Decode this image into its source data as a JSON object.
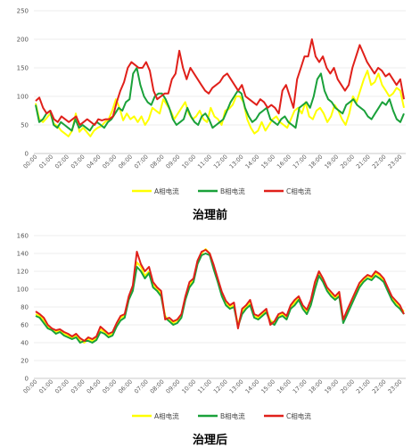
{
  "charts": [
    {
      "caption": "治理前"
    },
    {
      "caption": "治理后"
    }
  ],
  "chart_data": [
    {
      "type": "line",
      "title": "治理前",
      "ylim": [
        0,
        250
      ],
      "yticks": [
        0,
        50,
        100,
        150,
        200,
        250
      ],
      "xticklabels": [
        "00:00",
        "01:00",
        "02:00",
        "03:00",
        "04:00",
        "05:00",
        "06:00",
        "07:00",
        "08:00",
        "09:00",
        "10:00",
        "11:00",
        "12:00",
        "13:00",
        "14:00",
        "15:00",
        "16:00",
        "17:00",
        "18:00",
        "19:00",
        "20:00",
        "21:00",
        "22:00",
        "23:00"
      ],
      "grid": true,
      "legend": "bottom",
      "series": [
        {
          "name": "A相电流",
          "color": "#ffff00",
          "values": [
            88,
            60,
            55,
            62,
            70,
            52,
            48,
            40,
            35,
            30,
            40,
            70,
            38,
            45,
            38,
            30,
            40,
            45,
            48,
            55,
            60,
            75,
            95,
            80,
            58,
            70,
            60,
            65,
            55,
            65,
            50,
            60,
            80,
            75,
            70,
            95,
            85,
            75,
            60,
            70,
            80,
            90,
            70,
            60,
            65,
            75,
            60,
            55,
            80,
            65,
            60,
            50,
            75,
            78,
            85,
            100,
            100,
            90,
            60,
            45,
            35,
            40,
            55,
            40,
            50,
            60,
            65,
            55,
            50,
            45,
            60,
            75,
            80,
            70,
            90,
            65,
            60,
            75,
            80,
            70,
            55,
            65,
            85,
            75,
            60,
            50,
            70,
            100,
            90,
            110,
            130,
            145,
            120,
            125,
            140,
            120,
            110,
            100,
            105,
            115,
            110,
            80
          ]
        },
        {
          "name": "B相电流",
          "color": "#1aa13a",
          "values": [
            85,
            55,
            60,
            70,
            75,
            50,
            45,
            55,
            50,
            45,
            40,
            60,
            45,
            50,
            45,
            40,
            50,
            55,
            50,
            45,
            55,
            60,
            70,
            80,
            75,
            90,
            95,
            140,
            150,
            120,
            100,
            90,
            85,
            100,
            105,
            105,
            95,
            80,
            60,
            50,
            55,
            60,
            80,
            65,
            55,
            50,
            65,
            70,
            60,
            45,
            50,
            55,
            60,
            75,
            90,
            100,
            110,
            105,
            80,
            65,
            55,
            60,
            70,
            75,
            80,
            60,
            55,
            50,
            60,
            65,
            55,
            50,
            45,
            80,
            85,
            90,
            80,
            100,
            130,
            140,
            110,
            95,
            90,
            80,
            75,
            70,
            85,
            90,
            95,
            85,
            80,
            75,
            65,
            60,
            70,
            80,
            90,
            85,
            95,
            75,
            60,
            55,
            70
          ]
        },
        {
          "name": "C相电流",
          "color": "#e0201a",
          "values": [
            92,
            98,
            80,
            70,
            75,
            60,
            55,
            65,
            60,
            55,
            60,
            65,
            50,
            55,
            60,
            55,
            50,
            60,
            58,
            60,
            60,
            65,
            90,
            110,
            125,
            150,
            160,
            155,
            150,
            150,
            160,
            145,
            110,
            95,
            100,
            105,
            105,
            130,
            140,
            180,
            150,
            130,
            150,
            140,
            130,
            120,
            110,
            105,
            115,
            120,
            125,
            135,
            140,
            130,
            120,
            110,
            120,
            100,
            95,
            90,
            85,
            95,
            90,
            80,
            85,
            80,
            70,
            110,
            120,
            100,
            80,
            130,
            150,
            170,
            170,
            200,
            170,
            160,
            170,
            150,
            140,
            150,
            130,
            120,
            110,
            120,
            150,
            170,
            190,
            175,
            160,
            150,
            140,
            150,
            145,
            135,
            140,
            130,
            120,
            130,
            95
          ]
        }
      ]
    },
    {
      "type": "line",
      "title": "治理后",
      "ylim": [
        0,
        160
      ],
      "yticks": [
        0,
        20,
        40,
        60,
        80,
        100,
        120,
        140,
        160
      ],
      "xticklabels": [
        "00:00",
        "01:00",
        "02:00",
        "03:00",
        "04:00",
        "05:00",
        "06:00",
        "07:00",
        "08:00",
        "09:00",
        "10:00",
        "11:00",
        "12:00",
        "13:00",
        "14:00",
        "15:00",
        "16:00",
        "17:00",
        "18:00",
        "19:00",
        "20:00",
        "21:00",
        "22:00",
        "23:00"
      ],
      "grid": true,
      "legend": "bottom",
      "series": [
        {
          "name": "A相电流",
          "color": "#ffff00",
          "values": [
            72,
            70,
            65,
            58,
            55,
            52,
            54,
            50,
            48,
            45,
            48,
            42,
            40,
            44,
            42,
            45,
            55,
            52,
            48,
            50,
            60,
            68,
            70,
            90,
            100,
            130,
            125,
            115,
            120,
            105,
            100,
            95,
            70,
            65,
            62,
            65,
            70,
            90,
            105,
            110,
            130,
            140,
            145,
            140,
            125,
            110,
            95,
            85,
            80,
            82,
            60,
            75,
            80,
            85,
            70,
            68,
            72,
            76,
            65,
            62,
            70,
            72,
            68,
            80,
            85,
            90,
            80,
            75,
            85,
            105,
            118,
            110,
            100,
            95,
            90,
            95,
            65,
            75,
            85,
            95,
            105,
            110,
            115,
            112,
            118,
            115,
            110,
            100,
            90,
            85,
            80,
            75
          ]
        },
        {
          "name": "B相电流",
          "color": "#1aa13a",
          "values": [
            70,
            68,
            62,
            56,
            54,
            50,
            52,
            48,
            46,
            44,
            46,
            40,
            42,
            42,
            40,
            43,
            52,
            50,
            46,
            48,
            58,
            65,
            68,
            88,
            98,
            125,
            120,
            112,
            118,
            102,
            98,
            92,
            68,
            64,
            60,
            62,
            68,
            88,
            102,
            108,
            128,
            138,
            140,
            138,
            122,
            108,
            92,
            82,
            78,
            80,
            58,
            72,
            78,
            82,
            68,
            66,
            70,
            74,
            63,
            60,
            68,
            70,
            66,
            78,
            82,
            88,
            78,
            72,
            82,
            100,
            115,
            108,
            98,
            92,
            88,
            92,
            62,
            72,
            82,
            92,
            102,
            108,
            112,
            110,
            115,
            112,
            108,
            98,
            88,
            82,
            78,
            72
          ]
        },
        {
          "name": "C相电流",
          "color": "#e0201a",
          "values": [
            75,
            72,
            68,
            60,
            56,
            54,
            55,
            52,
            50,
            47,
            50,
            45,
            42,
            46,
            44,
            47,
            58,
            54,
            50,
            52,
            62,
            70,
            72,
            92,
            104,
            142,
            128,
            120,
            125,
            108,
            102,
            98,
            66,
            68,
            64,
            66,
            72,
            92,
            108,
            112,
            132,
            142,
            144,
            140,
            127,
            112,
            97,
            87,
            82,
            85,
            56,
            78,
            82,
            88,
            72,
            70,
            74,
            78,
            60,
            64,
            72,
            74,
            70,
            82,
            88,
            92,
            82,
            77,
            88,
            108,
            120,
            112,
            102,
            97,
            92,
            97,
            66,
            77,
            87,
            97,
            107,
            112,
            116,
            114,
            120,
            117,
            112,
            102,
            92,
            87,
            82,
            72
          ]
        }
      ]
    }
  ]
}
